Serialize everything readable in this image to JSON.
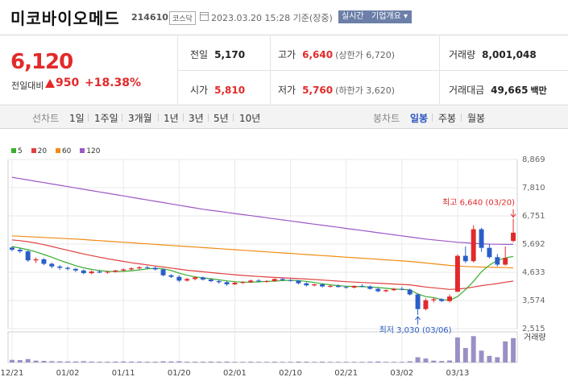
{
  "header": {
    "name": "미코바이오메드",
    "code": "214610",
    "market": "코스닥",
    "datetime": "2023.03.20 15:28 기준(장중)",
    "realtime_label": "실시간",
    "company_label": "기업개요 ▾"
  },
  "quote": {
    "price": "6,120",
    "change_label": "전일대비",
    "change_value": "950",
    "change_pct": "+18.38%",
    "prev_label": "전일",
    "prev_value": "5,170",
    "open_label": "시가",
    "open_value": "5,810",
    "high_label": "고가",
    "high_value": "6,640",
    "high_sub": "(상한가 6,720)",
    "low_label": "저가",
    "low_value": "5,760",
    "low_sub": "(하한가 3,620)",
    "volume_label": "거래량",
    "volume_value": "8,001,048",
    "amount_label": "거래대금",
    "amount_value": "49,665",
    "amount_unit": "백만"
  },
  "periods": {
    "line_label": "선차트",
    "line_items": [
      "1일",
      "1주일",
      "3개월",
      "1년",
      "3년",
      "5년",
      "10년"
    ],
    "candle_label": "봉차트",
    "candle_items": [
      "일봉",
      "주봉",
      "월봉"
    ],
    "selected_candle": "일봉"
  },
  "colors": {
    "up": "#e22a2a",
    "down": "#2a5ec8",
    "ma5": "#3aad2f",
    "ma20": "#e04040",
    "ma60": "#f08c14",
    "ma120": "#9b59c6"
  },
  "chart_data": {
    "type": "candlestick",
    "legend": [
      "5",
      "20",
      "60",
      "120"
    ],
    "y_ticks": [
      8869,
      7810,
      6751,
      5692,
      4633,
      3574,
      2515
    ],
    "x_labels": [
      "12/21",
      "01/02",
      "01/11",
      "01/20",
      "02/01",
      "02/10",
      "02/21",
      "03/02",
      "03/13"
    ],
    "max_annotation": "최고 6,640 (03/20)",
    "min_annotation": "최저 3,030 (03/06)",
    "volume_label": "거래량",
    "candles": [
      [
        5560,
        5600,
        5420,
        5480
      ],
      [
        5480,
        5560,
        5350,
        5420
      ],
      [
        5420,
        5460,
        5020,
        5080
      ],
      [
        5080,
        5180,
        4980,
        5120
      ],
      [
        5120,
        5160,
        4900,
        4950
      ],
      [
        4950,
        5000,
        4780,
        4850
      ],
      [
        4850,
        4900,
        4720,
        4800
      ],
      [
        4800,
        4850,
        4700,
        4760
      ],
      [
        4760,
        4790,
        4640,
        4700
      ],
      [
        4700,
        4740,
        4560,
        4600
      ],
      [
        4600,
        4700,
        4560,
        4660
      ],
      [
        4660,
        4720,
        4600,
        4620
      ],
      [
        4620,
        4680,
        4580,
        4650
      ],
      [
        4650,
        4720,
        4620,
        4700
      ],
      [
        4700,
        4780,
        4660,
        4740
      ],
      [
        4740,
        4820,
        4700,
        4780
      ],
      [
        4780,
        4860,
        4740,
        4820
      ],
      [
        4820,
        4880,
        4760,
        4800
      ],
      [
        4800,
        4850,
        4700,
        4740
      ],
      [
        4740,
        4770,
        4480,
        4520
      ],
      [
        4520,
        4560,
        4420,
        4460
      ],
      [
        4460,
        4520,
        4260,
        4320
      ],
      [
        4320,
        4420,
        4280,
        4380
      ],
      [
        4380,
        4480,
        4330,
        4440
      ],
      [
        4440,
        4480,
        4320,
        4360
      ],
      [
        4360,
        4400,
        4260,
        4300
      ],
      [
        4300,
        4360,
        4200,
        4260
      ],
      [
        4260,
        4300,
        4120,
        4180
      ],
      [
        4180,
        4280,
        4150,
        4240
      ],
      [
        4240,
        4300,
        4200,
        4260
      ],
      [
        4260,
        4360,
        4230,
        4320
      ],
      [
        4320,
        4380,
        4260,
        4290
      ],
      [
        4290,
        4340,
        4240,
        4300
      ],
      [
        4300,
        4400,
        4280,
        4380
      ],
      [
        4380,
        4420,
        4300,
        4340
      ],
      [
        4340,
        4380,
        4280,
        4320
      ],
      [
        4320,
        4340,
        4180,
        4220
      ],
      [
        4220,
        4260,
        4100,
        4140
      ],
      [
        4140,
        4200,
        4100,
        4180
      ],
      [
        4180,
        4220,
        4060,
        4100
      ],
      [
        4100,
        4160,
        4050,
        4120
      ],
      [
        4120,
        4180,
        4060,
        4080
      ],
      [
        4080,
        4120,
        4020,
        4060
      ],
      [
        4060,
        4140,
        4030,
        4120
      ],
      [
        4120,
        4180,
        4070,
        4100
      ],
      [
        4100,
        4140,
        3980,
        4010
      ],
      [
        4010,
        4060,
        3880,
        3920
      ],
      [
        3920,
        3990,
        3880,
        3960
      ],
      [
        3960,
        4050,
        3930,
        4010
      ],
      [
        4010,
        4080,
        3950,
        3980
      ],
      [
        3980,
        4020,
        3760,
        3800
      ],
      [
        3800,
        3840,
        3030,
        3250
      ],
      [
        3250,
        3650,
        3200,
        3580
      ],
      [
        3580,
        3680,
        3500,
        3620
      ],
      [
        3620,
        3660,
        3520,
        3550
      ],
      [
        3550,
        3800,
        3500,
        3720
      ],
      [
        3900,
        5300,
        3900,
        5250
      ],
      [
        5250,
        5600,
        4980,
        5050
      ],
      [
        5050,
        6400,
        5000,
        6250
      ],
      [
        6250,
        6300,
        5400,
        5550
      ],
      [
        5550,
        5700,
        5150,
        5200
      ],
      [
        5200,
        5320,
        4850,
        4920
      ],
      [
        4920,
        5600,
        4880,
        5170
      ],
      [
        5810,
        6640,
        5760,
        6120
      ]
    ],
    "volumes": [
      20,
      18,
      26,
      14,
      12,
      10,
      9,
      8,
      8,
      10,
      7,
      6,
      6,
      7,
      8,
      7,
      7,
      6,
      6,
      9,
      8,
      9,
      6,
      6,
      6,
      7,
      6,
      7,
      5,
      5,
      6,
      5,
      5,
      6,
      5,
      5,
      7,
      6,
      5,
      6,
      5,
      5,
      5,
      5,
      5,
      6,
      8,
      5,
      5,
      5,
      9,
      40,
      30,
      14,
      11,
      15,
      190,
      110,
      200,
      90,
      50,
      40,
      160,
      185
    ],
    "ma5": [
      5600,
      5540,
      5480,
      5400,
      5300,
      5200,
      5080,
      4980,
      4880,
      4800,
      4740,
      4700,
      4670,
      4660,
      4665,
      4690,
      4720,
      4760,
      4785,
      4760,
      4700,
      4600,
      4520,
      4460,
      4420,
      4390,
      4350,
      4310,
      4280,
      4260,
      4260,
      4270,
      4290,
      4300,
      4320,
      4330,
      4320,
      4290,
      4250,
      4200,
      4160,
      4130,
      4110,
      4100,
      4090,
      4080,
      4060,
      4030,
      4000,
      3990,
      3970,
      3820,
      3720,
      3680,
      3610,
      3580,
      3720,
      3980,
      4290,
      4650,
      4900,
      5080,
      5170,
      5230
    ],
    "ma20": [
      5850,
      5820,
      5780,
      5730,
      5670,
      5600,
      5530,
      5460,
      5390,
      5320,
      5260,
      5200,
      5140,
      5090,
      5040,
      4990,
      4950,
      4910,
      4870,
      4830,
      4790,
      4750,
      4710,
      4680,
      4650,
      4620,
      4590,
      4565,
      4540,
      4515,
      4495,
      4475,
      4455,
      4440,
      4425,
      4410,
      4395,
      4380,
      4360,
      4340,
      4320,
      4300,
      4280,
      4265,
      4250,
      4235,
      4220,
      4205,
      4190,
      4175,
      4160,
      4120,
      4080,
      4050,
      4020,
      3990,
      4000,
      4030,
      4080,
      4130,
      4170,
      4210,
      4260,
      4300
    ],
    "ma60": [
      6000,
      5985,
      5970,
      5955,
      5940,
      5925,
      5910,
      5895,
      5880,
      5860,
      5840,
      5820,
      5800,
      5780,
      5760,
      5740,
      5720,
      5700,
      5680,
      5660,
      5640,
      5620,
      5600,
      5580,
      5560,
      5540,
      5520,
      5500,
      5480,
      5460,
      5440,
      5420,
      5400,
      5380,
      5360,
      5340,
      5320,
      5300,
      5280,
      5260,
      5240,
      5220,
      5200,
      5180,
      5160,
      5140,
      5120,
      5100,
      5080,
      5060,
      5040,
      5010,
      4980,
      4950,
      4920,
      4890,
      4870,
      4850,
      4840,
      4830,
      4820,
      4815,
      4810,
      4800
    ],
    "ma120": [
      8200,
      8150,
      8100,
      8050,
      8000,
      7950,
      7900,
      7850,
      7800,
      7750,
      7700,
      7650,
      7600,
      7550,
      7500,
      7450,
      7400,
      7350,
      7300,
      7250,
      7200,
      7150,
      7100,
      7050,
      7000,
      6960,
      6920,
      6880,
      6840,
      6800,
      6760,
      6720,
      6680,
      6640,
      6600,
      6560,
      6520,
      6480,
      6440,
      6400,
      6360,
      6320,
      6280,
      6240,
      6200,
      6160,
      6120,
      6080,
      6040,
      6000,
      5960,
      5920,
      5880,
      5850,
      5820,
      5790,
      5760,
      5740,
      5720,
      5700,
      5690,
      5685,
      5680,
      5680
    ]
  }
}
